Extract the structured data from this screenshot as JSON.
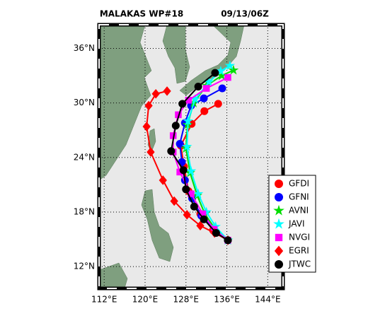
{
  "chart_data": {
    "type": "line",
    "title": "MALAKAS   WP#18",
    "subtitle": "09/13/06Z",
    "xlim": [
      111,
      147
    ],
    "ylim": [
      9.6,
      38.6
    ],
    "xticks": [
      {
        "value": 112,
        "label": "112°E"
      },
      {
        "value": 120,
        "label": "120°E"
      },
      {
        "value": 128,
        "label": "128°E"
      },
      {
        "value": 136,
        "label": "136°E"
      },
      {
        "value": 144,
        "label": "144°E"
      }
    ],
    "yticks": [
      {
        "value": 12,
        "label": "12°N"
      },
      {
        "value": 18,
        "label": "18°N"
      },
      {
        "value": 24,
        "label": "24°N"
      },
      {
        "value": 30,
        "label": "30°N"
      },
      {
        "value": 36,
        "label": "36°N"
      }
    ],
    "grid": true,
    "legend": "right",
    "series": [
      {
        "name": "GFDI",
        "color": "#ff0000",
        "marker": "circle",
        "x": [
          136.2,
          133.3,
          130.8,
          128.5,
          127.6,
          127.0,
          129.1,
          131.6,
          134.3
        ],
        "values": [
          14.9,
          16.0,
          17.8,
          20.3,
          23.0,
          25.3,
          27.7,
          29.1,
          29.9
        ]
      },
      {
        "name": "GFNI",
        "color": "#0000ff",
        "marker": "circle",
        "x": [
          136.2,
          133.6,
          131.0,
          129.2,
          127.8,
          127.2,
          126.8,
          127.8,
          129.0,
          131.5,
          135.1
        ],
        "values": [
          14.9,
          16.0,
          17.6,
          19.5,
          21.5,
          23.5,
          25.5,
          27.8,
          29.7,
          30.5,
          31.6
        ]
      },
      {
        "name": "AVNI",
        "color": "#00dd00",
        "marker": "star",
        "x": [
          136.2,
          133.5,
          131.7,
          130.2,
          128.8,
          128.0,
          128.3,
          129.5,
          132.0,
          135.0,
          137.3
        ],
        "values": [
          14.9,
          16.3,
          17.8,
          19.8,
          22.3,
          25.0,
          27.6,
          30.0,
          31.9,
          33.0,
          33.6
        ]
      },
      {
        "name": "JAVI",
        "color": "#00ffff",
        "marker": "star",
        "x": [
          136.2,
          133.8,
          132.0,
          130.4,
          129.0,
          128.2,
          128.4,
          129.8,
          132.5,
          134.8,
          136.6
        ],
        "values": [
          14.9,
          16.4,
          18.0,
          20.0,
          22.5,
          25.2,
          28.0,
          30.4,
          32.3,
          33.5,
          34.1
        ]
      },
      {
        "name": "NVGI",
        "color": "#ff00ff",
        "marker": "square",
        "x": [
          136.2,
          133.5,
          131.3,
          129.0,
          126.8,
          125.5,
          125.5,
          126.5,
          128.5,
          132.0,
          136.2
        ],
        "values": [
          14.9,
          16.1,
          17.8,
          20.0,
          22.4,
          24.6,
          26.4,
          28.7,
          30.3,
          31.6,
          32.8
        ]
      },
      {
        "name": "EGRI",
        "color": "#ff0000",
        "marker": "diamond",
        "x": [
          136.2,
          133.6,
          130.8,
          128.2,
          125.7,
          123.5,
          121.1,
          120.3,
          120.7,
          122.1,
          124.3
        ],
        "values": [
          14.9,
          15.7,
          16.5,
          17.7,
          19.2,
          21.5,
          24.6,
          27.4,
          29.7,
          31.0,
          31.3
        ]
      },
      {
        "name": "JTWC",
        "color": "#000000",
        "marker": "circle",
        "x": [
          136.2,
          133.9,
          131.5,
          129.6,
          128.0,
          127.5,
          125.1,
          126.0,
          127.3,
          130.4,
          133.7
        ],
        "values": [
          14.9,
          15.7,
          17.2,
          18.6,
          20.5,
          22.6,
          24.7,
          27.5,
          29.9,
          31.8,
          33.3
        ]
      }
    ]
  }
}
